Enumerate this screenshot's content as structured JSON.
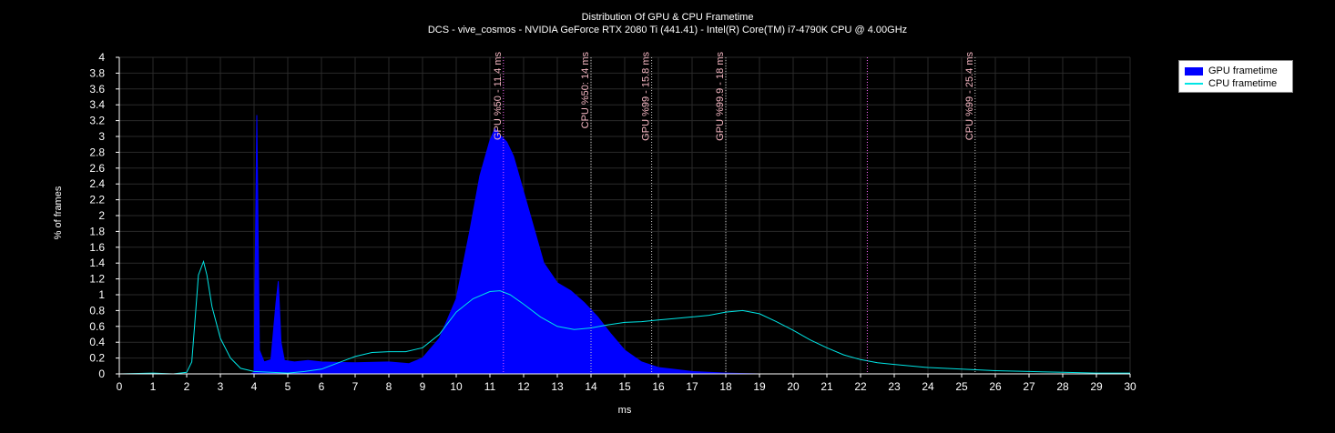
{
  "chart_data": {
    "type": "area",
    "title": "Distribution Of GPU & CPU Frametime",
    "subtitle": "DCS - vive_cosmos - NVIDIA GeForce RTX 2080 Ti (441.41) - Intel(R) Core(TM) i7-4790K CPU @ 4.00GHz",
    "xlabel": "ms",
    "ylabel": "% of frames",
    "xlim": [
      0,
      30
    ],
    "ylim": [
      0,
      4
    ],
    "xticks": [
      0,
      1,
      2,
      3,
      4,
      5,
      6,
      7,
      8,
      9,
      10,
      11,
      12,
      13,
      14,
      15,
      16,
      17,
      18,
      19,
      20,
      21,
      22,
      23,
      24,
      25,
      26,
      27,
      28,
      29,
      30
    ],
    "yticks": [
      "0",
      "0.2",
      "0.4",
      "0.6",
      "0.8",
      "1",
      "1.2",
      "1.4",
      "1.6",
      "1.8",
      "2",
      "2.2",
      "2.4",
      "2.6",
      "2.8",
      "3",
      "3.2",
      "3.4",
      "3.6",
      "3.8",
      "4"
    ],
    "grid": true,
    "legend_position": "top-right outside",
    "series": [
      {
        "name": "GPU frametime",
        "style": "filled area",
        "color": "#0000ff",
        "points": [
          [
            3.9,
            0
          ],
          [
            4.0,
            0.02
          ],
          [
            4.08,
            3.27
          ],
          [
            4.16,
            0.3
          ],
          [
            4.3,
            0.15
          ],
          [
            4.5,
            0.18
          ],
          [
            4.65,
            0.9
          ],
          [
            4.72,
            1.17
          ],
          [
            4.8,
            0.4
          ],
          [
            4.9,
            0.17
          ],
          [
            5.2,
            0.15
          ],
          [
            5.6,
            0.17
          ],
          [
            6,
            0.15
          ],
          [
            7,
            0.14
          ],
          [
            8,
            0.15
          ],
          [
            8.6,
            0.13
          ],
          [
            9,
            0.2
          ],
          [
            9.5,
            0.45
          ],
          [
            10,
            0.95
          ],
          [
            10.4,
            1.8
          ],
          [
            10.7,
            2.5
          ],
          [
            11.0,
            2.95
          ],
          [
            11.15,
            3.1
          ],
          [
            11.3,
            3.02
          ],
          [
            11.5,
            2.93
          ],
          [
            11.7,
            2.75
          ],
          [
            12,
            2.3
          ],
          [
            12.3,
            1.85
          ],
          [
            12.6,
            1.4
          ],
          [
            13,
            1.15
          ],
          [
            13.4,
            1.05
          ],
          [
            13.8,
            0.9
          ],
          [
            14.2,
            0.72
          ],
          [
            14.6,
            0.5
          ],
          [
            15,
            0.3
          ],
          [
            15.5,
            0.15
          ],
          [
            16,
            0.08
          ],
          [
            17,
            0.03
          ],
          [
            18,
            0.01
          ],
          [
            19,
            0
          ]
        ]
      },
      {
        "name": "CPU frametime",
        "style": "line",
        "color": "#00e5e5",
        "points": [
          [
            0,
            0
          ],
          [
            1,
            0.01
          ],
          [
            1.6,
            0
          ],
          [
            2.0,
            0.02
          ],
          [
            2.15,
            0.15
          ],
          [
            2.25,
            0.7
          ],
          [
            2.35,
            1.25
          ],
          [
            2.5,
            1.42
          ],
          [
            2.6,
            1.25
          ],
          [
            2.75,
            0.85
          ],
          [
            3.0,
            0.45
          ],
          [
            3.3,
            0.2
          ],
          [
            3.6,
            0.07
          ],
          [
            4,
            0.03
          ],
          [
            5,
            0.01
          ],
          [
            5.5,
            0.03
          ],
          [
            6,
            0.06
          ],
          [
            6.5,
            0.14
          ],
          [
            7,
            0.22
          ],
          [
            7.5,
            0.27
          ],
          [
            8,
            0.28
          ],
          [
            8.5,
            0.28
          ],
          [
            9,
            0.33
          ],
          [
            9.5,
            0.5
          ],
          [
            10,
            0.78
          ],
          [
            10.5,
            0.95
          ],
          [
            11,
            1.04
          ],
          [
            11.3,
            1.05
          ],
          [
            11.6,
            1.0
          ],
          [
            12,
            0.88
          ],
          [
            12.5,
            0.72
          ],
          [
            13,
            0.6
          ],
          [
            13.5,
            0.56
          ],
          [
            14,
            0.58
          ],
          [
            14.5,
            0.62
          ],
          [
            15,
            0.65
          ],
          [
            15.5,
            0.66
          ],
          [
            16,
            0.68
          ],
          [
            16.5,
            0.7
          ],
          [
            17,
            0.72
          ],
          [
            17.5,
            0.74
          ],
          [
            18,
            0.78
          ],
          [
            18.5,
            0.8
          ],
          [
            19,
            0.76
          ],
          [
            19.5,
            0.66
          ],
          [
            20,
            0.55
          ],
          [
            20.5,
            0.43
          ],
          [
            21,
            0.33
          ],
          [
            21.5,
            0.24
          ],
          [
            22,
            0.18
          ],
          [
            22.5,
            0.14
          ],
          [
            23,
            0.12
          ],
          [
            24,
            0.08
          ],
          [
            25,
            0.06
          ],
          [
            26,
            0.04
          ],
          [
            27,
            0.03
          ],
          [
            28,
            0.02
          ],
          [
            29,
            0.01
          ],
          [
            30,
            0.01
          ]
        ]
      }
    ],
    "markers": [
      {
        "label": "GPU %50 - 11.4 ms",
        "x": 11.4,
        "color": "#ff66ff"
      },
      {
        "label": "CPU %50: 14 ms",
        "x": 14.0,
        "color": "#cccccc"
      },
      {
        "label": "GPU %99 - 15.8 ms",
        "x": 15.8,
        "color": "#cccccc"
      },
      {
        "label": "GPU %99.9 - 18 ms",
        "x": 18.0,
        "color": "#cccccc"
      },
      {
        "label": "",
        "x": 22.2,
        "color": "#ff66ff"
      },
      {
        "label": "CPU %99 - 25.4 ms",
        "x": 25.4,
        "color": "#cccccc"
      }
    ]
  },
  "legend": {
    "gpu_label": "GPU frametime",
    "cpu_label": "CPU frametime"
  }
}
